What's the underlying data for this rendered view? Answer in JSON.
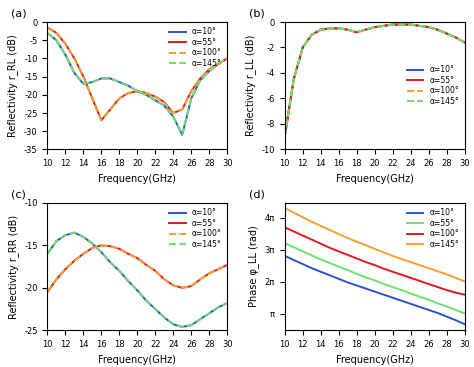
{
  "chart_data": [
    {
      "type": "line",
      "annotations": [
        "(a)"
      ],
      "x_label": "Frequency(GHz)",
      "y_label": "Reflectivity r_RL (dB)",
      "x": [
        10,
        11,
        12,
        13,
        14,
        15,
        16,
        17,
        18,
        19,
        20,
        21,
        22,
        23,
        24,
        25,
        26,
        27,
        28,
        29,
        30
      ],
      "xlim": [
        10,
        30
      ],
      "xticks": [
        10,
        12,
        14,
        16,
        18,
        20,
        22,
        24,
        26,
        28,
        30
      ],
      "ylim": [
        -35,
        0
      ],
      "yticks": [
        -35,
        -30,
        -25,
        -20,
        -15,
        -10,
        -5,
        0
      ],
      "legend": "upper right",
      "series": [
        {
          "name": "α=10°",
          "color": "#2a52d4",
          "line_style": "solid",
          "values": [
            -3,
            -5,
            -9,
            -14,
            -17,
            -16.5,
            -15.5,
            -15.5,
            -16.5,
            -17.5,
            -19,
            -20,
            -21.5,
            -23,
            -26,
            -31,
            -21,
            -16,
            -13.5,
            -11.5,
            -10
          ]
        },
        {
          "name": "α=55°",
          "color": "#e0191f",
          "line_style": "solid",
          "values": [
            -1.5,
            -3,
            -6,
            -10,
            -15,
            -21,
            -27,
            -24,
            -21,
            -19.5,
            -19,
            -19.5,
            -20.5,
            -22,
            -25,
            -24,
            -19,
            -15.5,
            -13,
            -11.5,
            -10
          ]
        },
        {
          "name": "α=100°",
          "color": "#f5a030",
          "line_style": "dashed",
          "values": [
            -1.5,
            -3,
            -6,
            -10,
            -15,
            -21,
            -27,
            -24,
            -21,
            -19.5,
            -19,
            -19.5,
            -20.5,
            -22,
            -25,
            -24,
            -19,
            -15.5,
            -13,
            -11.5,
            -10
          ]
        },
        {
          "name": "α=145°",
          "color": "#6ee06e",
          "line_style": "dashed",
          "values": [
            -3,
            -5,
            -9,
            -14,
            -17,
            -16.5,
            -15.5,
            -15.5,
            -16.5,
            -17.5,
            -19,
            -20,
            -21.5,
            -23,
            -26,
            -31,
            -21,
            -16,
            -13.5,
            -11.5,
            -10
          ]
        }
      ]
    },
    {
      "type": "line",
      "annotations": [
        "(b)"
      ],
      "x_label": "Frequency(GHz)",
      "y_label": "Reflectivity r_LL (dB)",
      "x": [
        10,
        11,
        12,
        13,
        14,
        15,
        16,
        17,
        18,
        19,
        20,
        21,
        22,
        23,
        24,
        25,
        26,
        27,
        28,
        29,
        30
      ],
      "xlim": [
        10,
        30
      ],
      "xticks": [
        10,
        12,
        14,
        16,
        18,
        20,
        22,
        24,
        26,
        28,
        30
      ],
      "ylim": [
        -10,
        0
      ],
      "yticks": [
        -10,
        -8,
        -6,
        -4,
        -2,
        0
      ],
      "legend": "center right",
      "series": [
        {
          "name": "α=10°",
          "color": "#2a52d4",
          "line_style": "solid",
          "values": [
            -9,
            -4.5,
            -2,
            -1,
            -0.6,
            -0.5,
            -0.5,
            -0.6,
            -0.8,
            -0.6,
            -0.4,
            -0.3,
            -0.2,
            -0.2,
            -0.2,
            -0.3,
            -0.4,
            -0.6,
            -0.9,
            -1.2,
            -1.6
          ]
        },
        {
          "name": "α=55°",
          "color": "#e0191f",
          "line_style": "solid",
          "values": [
            -9,
            -4.5,
            -2,
            -1,
            -0.6,
            -0.5,
            -0.5,
            -0.6,
            -0.8,
            -0.6,
            -0.4,
            -0.3,
            -0.2,
            -0.2,
            -0.2,
            -0.3,
            -0.4,
            -0.6,
            -0.9,
            -1.2,
            -1.6
          ]
        },
        {
          "name": "α=100°",
          "color": "#f5a030",
          "line_style": "dashed",
          "values": [
            -9,
            -4.5,
            -2,
            -1,
            -0.6,
            -0.5,
            -0.5,
            -0.6,
            -0.8,
            -0.6,
            -0.4,
            -0.3,
            -0.2,
            -0.2,
            -0.2,
            -0.3,
            -0.4,
            -0.6,
            -0.9,
            -1.2,
            -1.6
          ]
        },
        {
          "name": "α=145°",
          "color": "#6ee06e",
          "line_style": "dashed",
          "values": [
            -9,
            -4.5,
            -2,
            -1,
            -0.6,
            -0.5,
            -0.5,
            -0.6,
            -0.8,
            -0.6,
            -0.4,
            -0.3,
            -0.2,
            -0.2,
            -0.2,
            -0.3,
            -0.4,
            -0.6,
            -0.9,
            -1.2,
            -1.6
          ]
        }
      ]
    },
    {
      "type": "line",
      "annotations": [
        "(c)"
      ],
      "x_label": "Frequency(GHz)",
      "y_label": "Reflectivity r_RR (dB)",
      "x": [
        10,
        11,
        12,
        13,
        14,
        15,
        16,
        17,
        18,
        19,
        20,
        21,
        22,
        23,
        24,
        25,
        26,
        27,
        28,
        29,
        30
      ],
      "xlim": [
        10,
        30
      ],
      "xticks": [
        10,
        12,
        14,
        16,
        18,
        20,
        22,
        24,
        26,
        28,
        30
      ],
      "ylim": [
        -25,
        -10
      ],
      "yticks": [
        -25,
        -20,
        -15,
        -10
      ],
      "legend": "upper right",
      "series": [
        {
          "name": "α=10°",
          "color": "#2a52d4",
          "line_style": "solid",
          "values": [
            -16,
            -14.5,
            -13.8,
            -13.5,
            -14,
            -14.8,
            -15.8,
            -17,
            -18,
            -19.2,
            -20.3,
            -21.5,
            -22.5,
            -23.5,
            -24.3,
            -24.6,
            -24.4,
            -23.7,
            -23,
            -22.3,
            -21.8
          ]
        },
        {
          "name": "α=55°",
          "color": "#e0191f",
          "line_style": "solid",
          "values": [
            -20.5,
            -19,
            -17.8,
            -16.8,
            -16,
            -15.3,
            -15,
            -15.1,
            -15.4,
            -16,
            -16.5,
            -17.3,
            -18,
            -19,
            -19.7,
            -20,
            -19.8,
            -19,
            -18.3,
            -17.8,
            -17.3
          ]
        },
        {
          "name": "α=100°",
          "color": "#f5a030",
          "line_style": "dashed",
          "values": [
            -20.5,
            -19,
            -17.8,
            -16.8,
            -16,
            -15.3,
            -15,
            -15.1,
            -15.4,
            -16,
            -16.5,
            -17.3,
            -18,
            -19,
            -19.7,
            -20,
            -19.8,
            -19,
            -18.3,
            -17.8,
            -17.3
          ]
        },
        {
          "name": "α=145°",
          "color": "#6ee06e",
          "line_style": "dashed",
          "values": [
            -16,
            -14.5,
            -13.8,
            -13.5,
            -14,
            -14.8,
            -15.8,
            -17,
            -18,
            -19.2,
            -20.3,
            -21.5,
            -22.5,
            -23.5,
            -24.3,
            -24.6,
            -24.4,
            -23.7,
            -23,
            -22.3,
            -21.8
          ]
        }
      ]
    },
    {
      "type": "line",
      "annotations": [
        "(d)"
      ],
      "x_label": "Frequency(GHz)",
      "y_label": "Phase φ_LL (rad)",
      "x": [
        10,
        11,
        12,
        13,
        14,
        15,
        16,
        17,
        18,
        19,
        20,
        21,
        22,
        23,
        24,
        25,
        26,
        27,
        28,
        29,
        30
      ],
      "xlim": [
        10,
        30
      ],
      "xticks": [
        10,
        12,
        14,
        16,
        18,
        20,
        22,
        24,
        26,
        28,
        30
      ],
      "ylim": [
        1.5,
        14.0
      ],
      "yticks": [
        {
          "value": 3.1416,
          "label": "π"
        },
        {
          "value": 6.2832,
          "label": "2π"
        },
        {
          "value": 9.4248,
          "label": "3π"
        },
        {
          "value": 12.5664,
          "label": "4π"
        }
      ],
      "legend": "upper right",
      "series": [
        {
          "name": "α=10°",
          "color": "#2a52d4",
          "line_style": "solid",
          "values": [
            8.8,
            8.4,
            8.0,
            7.6,
            7.25,
            6.9,
            6.55,
            6.2,
            5.9,
            5.6,
            5.3,
            5.0,
            4.7,
            4.4,
            4.1,
            3.8,
            3.5,
            3.2,
            2.85,
            2.5,
            2.1
          ]
        },
        {
          "name": "α=55°",
          "color": "#6ee06e",
          "line_style": "solid",
          "values": [
            10.05,
            9.65,
            9.25,
            8.85,
            8.45,
            8.1,
            7.75,
            7.4,
            7.05,
            6.7,
            6.4,
            6.05,
            5.75,
            5.45,
            5.1,
            4.8,
            4.5,
            4.15,
            3.85,
            3.5,
            3.15
          ]
        },
        {
          "name": "α=100°",
          "color": "#e0191f",
          "line_style": "solid",
          "values": [
            11.6,
            11.2,
            10.8,
            10.4,
            10.0,
            9.6,
            9.25,
            8.9,
            8.55,
            8.2,
            7.9,
            7.55,
            7.25,
            6.95,
            6.65,
            6.35,
            6.05,
            5.75,
            5.45,
            5.2,
            5.0
          ]
        },
        {
          "name": "α=145°",
          "color": "#f5a030",
          "line_style": "solid",
          "values": [
            13.5,
            13.05,
            12.6,
            12.15,
            11.75,
            11.35,
            10.95,
            10.55,
            10.2,
            9.85,
            9.5,
            9.15,
            8.8,
            8.5,
            8.2,
            7.9,
            7.6,
            7.3,
            7.0,
            6.65,
            6.3
          ]
        }
      ]
    }
  ]
}
